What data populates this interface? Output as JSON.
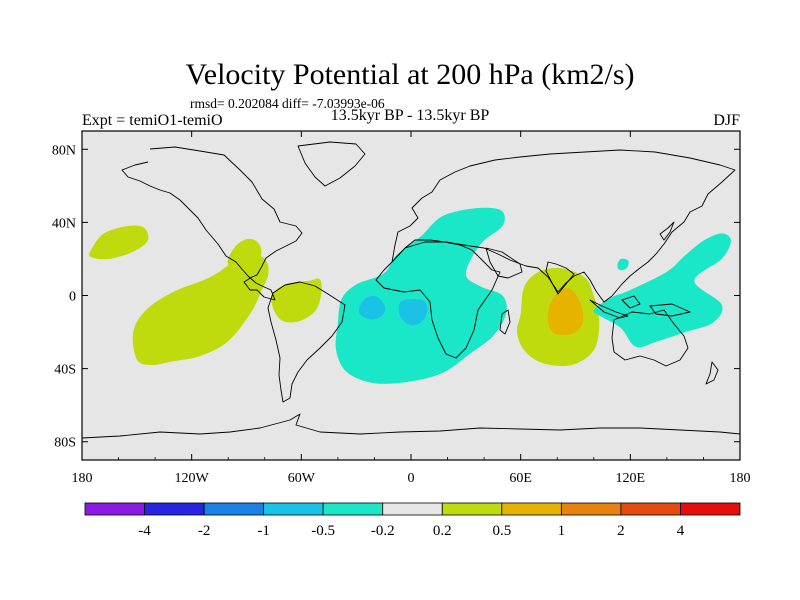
{
  "chart_data": {
    "type": "heatmap",
    "title": "Velocity Potential at 200 hPa (km2/s)",
    "stats_line": "rmsd= 0.202084 diff= -7.03993e-06",
    "left_subtitle": "Expt = temiO1-temiO",
    "center_subtitle": "13.5kyr BP - 13.5kyr BP",
    "right_subtitle": "DJF",
    "x_axis": {
      "range": [
        -180,
        180
      ],
      "ticks": [
        -180,
        -120,
        -60,
        0,
        60,
        120,
        180
      ],
      "tick_labels": [
        "180",
        "120W",
        "60W",
        "0",
        "60E",
        "120E",
        "180"
      ]
    },
    "y_axis": {
      "range": [
        -90,
        90
      ],
      "ticks": [
        80,
        40,
        0,
        -40,
        -80
      ],
      "tick_labels": [
        "80N",
        "40N",
        "0",
        "40S",
        "80S"
      ]
    },
    "colorbar": {
      "levels": [
        -4,
        -2,
        -1,
        -0.5,
        -0.2,
        0.2,
        0.5,
        1,
        2,
        4
      ],
      "level_labels": [
        "-4",
        "-2",
        "-1",
        "-0.5",
        "-0.2",
        "0.2",
        "0.5",
        "1",
        "2",
        "4"
      ],
      "colors": [
        "#8c1ae6",
        "#2626e0",
        "#1a82e6",
        "#1ac2e6",
        "#1ae6c8",
        "#e6e6e6",
        "#bfdb0d",
        "#e6b400",
        "#e6820d",
        "#e64a0d",
        "#e60d0d"
      ]
    },
    "regions": [
      {
        "name": "north-pacific-positive",
        "level": "0.2 to 0.5",
        "lonlat": [
          [
            -175,
            25
          ],
          [
            -168,
            34
          ],
          [
            -155,
            38
          ],
          [
            -146,
            37
          ],
          [
            -144,
            30
          ],
          [
            -152,
            24
          ],
          [
            -165,
            20
          ],
          [
            -175,
            21
          ]
        ]
      },
      {
        "name": "east-pacific-positive",
        "level": "0.2 to 0.5",
        "lonlat": [
          [
            -150,
            -35
          ],
          [
            -152,
            -20
          ],
          [
            -145,
            -8
          ],
          [
            -130,
            2
          ],
          [
            -110,
            10
          ],
          [
            -98,
            18
          ],
          [
            -90,
            24
          ],
          [
            -80,
            20
          ],
          [
            -78,
            12
          ],
          [
            -82,
            2
          ],
          [
            -88,
            -10
          ],
          [
            -100,
            -25
          ],
          [
            -115,
            -33
          ],
          [
            -130,
            -36
          ],
          [
            -142,
            -38
          ]
        ]
      },
      {
        "name": "central-america-positive",
        "level": "0.2 to 0.5",
        "lonlat": [
          [
            -100,
            20
          ],
          [
            -95,
            28
          ],
          [
            -88,
            31
          ],
          [
            -83,
            28
          ],
          [
            -82,
            22
          ],
          [
            -86,
            14
          ],
          [
            -93,
            12
          ],
          [
            -99,
            15
          ]
        ]
      },
      {
        "name": "atlantic-positive",
        "level": "0.2 to 0.5",
        "lonlat": [
          [
            -75,
            -8
          ],
          [
            -76,
            0
          ],
          [
            -69,
            6
          ],
          [
            -56,
            8
          ],
          [
            -50,
            9
          ],
          [
            -49,
            2
          ],
          [
            -52,
            -8
          ],
          [
            -61,
            -14
          ],
          [
            -70,
            -14
          ]
        ]
      },
      {
        "name": "africa-negative",
        "level": "-0.5 to -0.2",
        "lonlat": [
          [
            -40,
            -15
          ],
          [
            -38,
            -2
          ],
          [
            -30,
            6
          ],
          [
            -15,
            12
          ],
          [
            -8,
            22
          ],
          [
            5,
            32
          ],
          [
            15,
            42
          ],
          [
            25,
            46
          ],
          [
            40,
            48
          ],
          [
            50,
            46
          ],
          [
            50,
            38
          ],
          [
            38,
            28
          ],
          [
            30,
            12
          ],
          [
            38,
            5
          ],
          [
            50,
            0
          ],
          [
            52,
            -10
          ],
          [
            45,
            -22
          ],
          [
            32,
            -32
          ],
          [
            18,
            -42
          ],
          [
            0,
            -47
          ],
          [
            -20,
            -48
          ],
          [
            -35,
            -42
          ],
          [
            -41,
            -30
          ]
        ]
      },
      {
        "name": "west-africa-negative-core",
        "level": "-1 to -0.5",
        "lonlat": [
          [
            -28,
            -6
          ],
          [
            -24,
            -1
          ],
          [
            -18,
            -1
          ],
          [
            -14,
            -7
          ],
          [
            -17,
            -12
          ],
          [
            -23,
            -13
          ],
          [
            -28,
            -10
          ]
        ]
      },
      {
        "name": "central-africa-negative-core",
        "level": "-1 to -0.5",
        "lonlat": [
          [
            -6,
            -4
          ],
          [
            0,
            -2
          ],
          [
            7,
            -3
          ],
          [
            9,
            -9
          ],
          [
            5,
            -15
          ],
          [
            -1,
            -16
          ],
          [
            -6,
            -11
          ]
        ]
      },
      {
        "name": "indian-ocean-positive",
        "level": "0.2 to 0.5",
        "lonlat": [
          [
            60,
            -10
          ],
          [
            62,
            5
          ],
          [
            70,
            13
          ],
          [
            82,
            15
          ],
          [
            95,
            10
          ],
          [
            100,
            0
          ],
          [
            103,
            -15
          ],
          [
            100,
            -30
          ],
          [
            88,
            -38
          ],
          [
            72,
            -37
          ],
          [
            62,
            -30
          ],
          [
            58,
            -20
          ]
        ]
      },
      {
        "name": "indian-ocean-positive-core",
        "level": "0.5 to 1",
        "lonlat": [
          [
            75,
            -15
          ],
          [
            76,
            -5
          ],
          [
            82,
            3
          ],
          [
            88,
            3
          ],
          [
            93,
            -5
          ],
          [
            94,
            -15
          ],
          [
            88,
            -21
          ],
          [
            79,
            -21
          ]
        ]
      },
      {
        "name": "maritime-continent-negative",
        "level": "-0.5 to -0.2",
        "lonlat": [
          [
            100,
            -8
          ],
          [
            110,
            -1
          ],
          [
            120,
            3
          ],
          [
            140,
            13
          ],
          [
            150,
            22
          ],
          [
            160,
            30
          ],
          [
            170,
            34
          ],
          [
            175,
            30
          ],
          [
            170,
            20
          ],
          [
            155,
            8
          ],
          [
            170,
            -5
          ],
          [
            165,
            -15
          ],
          [
            150,
            -20
          ],
          [
            135,
            -25
          ],
          [
            123,
            -28
          ],
          [
            115,
            -18
          ],
          [
            105,
            -12
          ]
        ]
      },
      {
        "name": "south-china-negative",
        "level": "-0.5 to -0.2",
        "lonlat": [
          [
            113,
            17
          ],
          [
            115,
            20
          ],
          [
            119,
            19
          ],
          [
            118,
            15
          ],
          [
            114,
            14
          ]
        ]
      }
    ]
  }
}
